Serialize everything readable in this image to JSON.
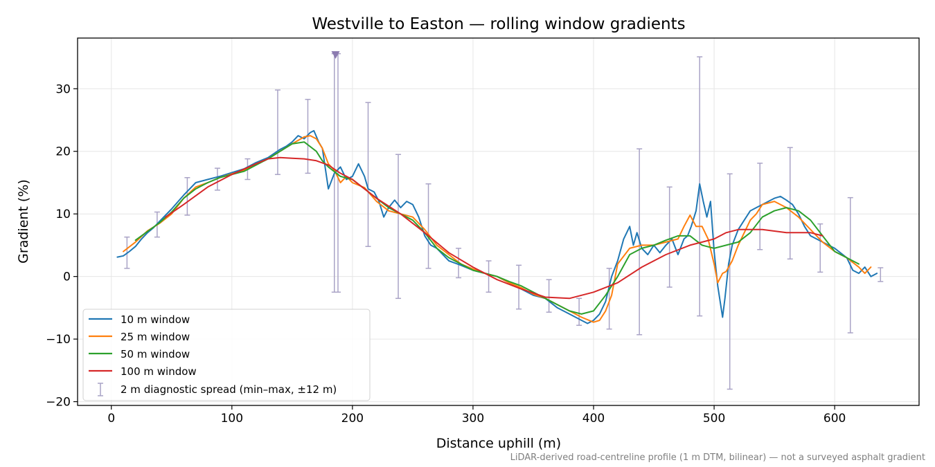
{
  "chart_data": {
    "type": "line",
    "title": "Westville to Easton — rolling window gradients",
    "xlabel": "Distance uphill (m)",
    "ylabel": "Gradient (%)",
    "footnote": "LiDAR-derived road-centreline profile (1 m DTM, bilinear) — not a surveyed asphalt gradient",
    "xlim": [
      -28,
      670
    ],
    "ylim": [
      -20.6,
      38.1
    ],
    "x_ticks": [
      0,
      100,
      200,
      300,
      400,
      500,
      600
    ],
    "y_ticks": [
      -20,
      -10,
      0,
      10,
      20,
      30
    ],
    "y_tick_labels": [
      "−20",
      "−10",
      "0",
      "10",
      "20",
      "30"
    ],
    "grid": true,
    "legend_position": "lower-left",
    "series": [
      {
        "name": "10 m window",
        "color": "#1f77b4",
        "x": [
          5,
          10,
          15,
          20,
          25,
          30,
          35,
          40,
          50,
          60,
          70,
          80,
          90,
          100,
          110,
          120,
          130,
          140,
          145,
          150,
          155,
          160,
          165,
          168,
          172,
          175,
          180,
          185,
          190,
          195,
          200,
          205,
          210,
          213,
          218,
          222,
          226,
          230,
          235,
          240,
          245,
          250,
          255,
          260,
          265,
          270,
          280,
          290,
          300,
          310,
          320,
          330,
          340,
          350,
          360,
          370,
          380,
          390,
          395,
          400,
          405,
          410,
          415,
          420,
          425,
          430,
          433,
          436,
          440,
          445,
          450,
          455,
          460,
          465,
          470,
          475,
          478,
          481,
          485,
          488,
          491,
          494,
          497,
          500,
          503,
          505,
          507,
          509,
          512,
          515,
          520,
          525,
          530,
          535,
          540,
          545,
          550,
          555,
          560,
          565,
          570,
          575,
          580,
          590,
          600,
          610,
          615,
          620,
          625,
          630,
          635
        ],
        "y": [
          3.1,
          3.3,
          4.0,
          4.8,
          6.0,
          7.0,
          7.8,
          8.8,
          10.8,
          13.0,
          15.0,
          15.5,
          16.0,
          16.6,
          17.2,
          18.2,
          19.0,
          20.3,
          20.8,
          21.5,
          22.5,
          22.0,
          23.0,
          23.3,
          21.5,
          20.5,
          14.0,
          16.5,
          17.5,
          15.5,
          16.0,
          18.0,
          16.0,
          14.0,
          13.5,
          12.0,
          9.5,
          11.0,
          12.2,
          11.0,
          12.0,
          11.5,
          9.5,
          6.5,
          5.0,
          4.5,
          2.5,
          1.8,
          1.0,
          0.5,
          0.0,
          -1.0,
          -2.0,
          -3.0,
          -3.5,
          -5.0,
          -6.0,
          -7.0,
          -7.5,
          -7.0,
          -6.0,
          -4.0,
          0.0,
          2.5,
          6.0,
          8.0,
          5.0,
          7.0,
          4.5,
          3.5,
          5.0,
          3.8,
          5.0,
          6.0,
          3.5,
          6.0,
          6.5,
          8.0,
          10.5,
          14.8,
          12.0,
          9.5,
          12.0,
          4.0,
          -1.5,
          -4.0,
          -6.5,
          -3.5,
          2.0,
          5.0,
          7.5,
          9.0,
          10.5,
          11.0,
          11.5,
          12.0,
          12.5,
          12.8,
          12.2,
          11.5,
          10.0,
          8.0,
          6.5,
          5.5,
          4.5,
          3.0,
          1.0,
          0.5,
          1.5,
          0.0,
          0.5
        ]
      },
      {
        "name": "25 m window",
        "color": "#ff7f0e",
        "x": [
          10,
          20,
          30,
          40,
          50,
          60,
          70,
          80,
          90,
          100,
          110,
          120,
          130,
          140,
          150,
          160,
          165,
          170,
          175,
          180,
          185,
          190,
          195,
          200,
          210,
          220,
          230,
          240,
          250,
          260,
          270,
          280,
          290,
          300,
          310,
          320,
          330,
          340,
          350,
          360,
          370,
          380,
          390,
          400,
          405,
          410,
          415,
          420,
          430,
          440,
          450,
          460,
          470,
          475,
          480,
          485,
          490,
          495,
          500,
          503,
          507,
          510,
          515,
          520,
          525,
          530,
          535,
          540,
          550,
          560,
          570,
          580,
          590,
          600,
          610,
          620,
          625,
          630
        ],
        "y": [
          4.0,
          5.5,
          7.3,
          8.5,
          10.0,
          12.5,
          14.3,
          15.0,
          15.8,
          16.4,
          17.0,
          18.0,
          18.8,
          20.0,
          21.2,
          22.3,
          22.5,
          22.0,
          20.5,
          18.0,
          17.0,
          15.0,
          16.0,
          15.0,
          14.2,
          12.0,
          10.5,
          10.0,
          9.5,
          7.5,
          5.0,
          3.5,
          2.0,
          1.2,
          0.5,
          0.0,
          -1.0,
          -1.8,
          -2.8,
          -3.5,
          -4.5,
          -5.5,
          -6.5,
          -7.3,
          -7.0,
          -5.5,
          -3.0,
          2.0,
          4.5,
          5.0,
          5.0,
          5.5,
          6.0,
          8.0,
          9.8,
          8.0,
          8.0,
          6.0,
          2.0,
          -1.0,
          0.5,
          0.8,
          2.5,
          5.0,
          7.0,
          9.0,
          10.0,
          11.5,
          12.0,
          11.0,
          9.5,
          7.5,
          5.5,
          4.0,
          3.0,
          1.5,
          0.5,
          1.5
        ]
      },
      {
        "name": "50 m window",
        "color": "#2ca02c",
        "x": [
          20,
          30,
          40,
          50,
          60,
          70,
          80,
          90,
          100,
          110,
          120,
          130,
          140,
          150,
          160,
          170,
          175,
          180,
          190,
          200,
          210,
          220,
          230,
          240,
          250,
          260,
          270,
          280,
          290,
          300,
          310,
          320,
          330,
          340,
          350,
          360,
          370,
          380,
          390,
          400,
          410,
          420,
          430,
          440,
          450,
          460,
          470,
          480,
          490,
          500,
          510,
          520,
          530,
          540,
          550,
          560,
          570,
          580,
          590,
          600,
          610,
          620
        ],
        "y": [
          5.8,
          7.2,
          8.6,
          10.3,
          12.5,
          14.0,
          15.0,
          15.8,
          16.3,
          16.8,
          17.8,
          18.8,
          20.0,
          21.2,
          21.5,
          20.0,
          18.5,
          17.5,
          16.0,
          15.5,
          14.0,
          12.5,
          11.0,
          10.0,
          9.0,
          7.0,
          4.5,
          3.0,
          2.0,
          1.0,
          0.5,
          0.0,
          -0.8,
          -1.5,
          -2.5,
          -3.5,
          -4.5,
          -5.5,
          -6.0,
          -5.5,
          -3.0,
          0.0,
          3.5,
          4.5,
          5.0,
          5.8,
          6.5,
          6.5,
          5.0,
          4.5,
          5.0,
          5.5,
          7.0,
          9.5,
          10.5,
          11.0,
          10.5,
          9.0,
          6.5,
          4.0,
          3.0,
          2.0
        ]
      },
      {
        "name": "100 m window",
        "color": "#d62728",
        "x": [
          45,
          60,
          80,
          100,
          120,
          130,
          140,
          150,
          160,
          170,
          180,
          190,
          200,
          220,
          240,
          260,
          280,
          300,
          320,
          340,
          360,
          380,
          390,
          400,
          420,
          440,
          460,
          480,
          500,
          510,
          520,
          540,
          560,
          580,
          590
        ],
        "y": [
          9.5,
          11.5,
          14.3,
          16.3,
          18.0,
          18.8,
          19.0,
          18.9,
          18.8,
          18.5,
          17.8,
          16.5,
          15.5,
          12.5,
          10.0,
          7.0,
          3.8,
          1.5,
          -0.5,
          -2.0,
          -3.3,
          -3.5,
          -3.0,
          -2.5,
          -1.0,
          1.5,
          3.5,
          5.0,
          6.0,
          7.0,
          7.5,
          7.5,
          7.0,
          7.0,
          6.5
        ]
      }
    ],
    "diagnostic_spread": {
      "name": "2 m diagnostic spread (min–max, ±12 m)",
      "color": "#a9a3c6",
      "marker_color": "#8c7bb0",
      "points": [
        {
          "x": 13,
          "min": 1.3,
          "max": 6.3
        },
        {
          "x": 38,
          "min": 6.3,
          "max": 10.3
        },
        {
          "x": 63,
          "min": 9.8,
          "max": 15.8
        },
        {
          "x": 88,
          "min": 13.8,
          "max": 17.3
        },
        {
          "x": 113,
          "min": 15.5,
          "max": 18.8
        },
        {
          "x": 138,
          "min": 16.3,
          "max": 29.8
        },
        {
          "x": 163,
          "min": 16.5,
          "max": 28.3
        },
        {
          "x": 185,
          "min": -2.5,
          "max": 35.6
        },
        {
          "x": 188,
          "min": -2.5,
          "max": 35.6
        },
        {
          "x": 213,
          "min": 4.8,
          "max": 27.8
        },
        {
          "x": 238,
          "min": -3.5,
          "max": 19.5
        },
        {
          "x": 263,
          "min": 1.3,
          "max": 14.8
        },
        {
          "x": 288,
          "min": -0.2,
          "max": 4.5
        },
        {
          "x": 313,
          "min": -2.5,
          "max": 2.5
        },
        {
          "x": 338,
          "min": -5.2,
          "max": 1.8
        },
        {
          "x": 363,
          "min": -5.7,
          "max": -0.5
        },
        {
          "x": 388,
          "min": -7.8,
          "max": -3.5
        },
        {
          "x": 413,
          "min": -8.4,
          "max": 1.3
        },
        {
          "x": 438,
          "min": -9.3,
          "max": 20.4
        },
        {
          "x": 463,
          "min": -1.7,
          "max": 14.3
        },
        {
          "x": 488,
          "min": -6.3,
          "max": 35.1
        },
        {
          "x": 513,
          "min": -18.0,
          "max": 16.4
        },
        {
          "x": 538,
          "min": 4.3,
          "max": 18.1
        },
        {
          "x": 563,
          "min": 2.8,
          "max": 20.6
        },
        {
          "x": 588,
          "min": 0.7,
          "max": 8.4
        },
        {
          "x": 613,
          "min": -9.0,
          "max": 12.6
        },
        {
          "x": 638,
          "min": -0.8,
          "max": 1.4
        }
      ],
      "clipped_marker_x": 186
    }
  }
}
